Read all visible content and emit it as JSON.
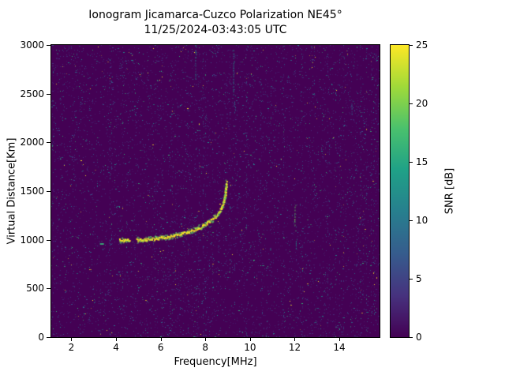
{
  "chart_data": {
    "type": "heatmap",
    "title": "Ionogram Jicamarca-Cuzco Polarization NE45°",
    "subtitle": "11/25/2024-03:43:05 UTC",
    "xlabel": "Frequency[MHz]",
    "ylabel": "Virtual Distance[Km]",
    "xlim": [
      1.1,
      15.8
    ],
    "ylim": [
      0,
      3000
    ],
    "x_ticks": [
      2,
      4,
      6,
      8,
      10,
      12,
      14
    ],
    "y_ticks": [
      0,
      500,
      1000,
      1500,
      2000,
      2500,
      3000
    ],
    "grid": false,
    "background_color": "#440154",
    "colorbar": {
      "label": "SNR [dB]",
      "min": 0,
      "max": 25,
      "ticks": [
        0,
        5,
        10,
        15,
        20,
        25
      ],
      "viridis_stops": [
        "#440154",
        "#46327e",
        "#365c8d",
        "#277f8e",
        "#1fa187",
        "#4ac16d",
        "#a0da39",
        "#fde725"
      ]
    },
    "noise": {
      "seed": 42,
      "speckle_count": 6800,
      "column_streaks": 48,
      "palette": [
        {
          "color": "#46327e",
          "weight": 0.42
        },
        {
          "color": "#3b528b",
          "weight": 0.25
        },
        {
          "color": "#2c728e",
          "weight": 0.16
        },
        {
          "color": "#21918c",
          "weight": 0.1
        },
        {
          "color": "#35b779",
          "weight": 0.05
        },
        {
          "color": "#fde725",
          "weight": 0.02
        }
      ],
      "vertical_features": [
        {
          "freq": 7.55,
          "km_from": 2650,
          "km_to": 3000,
          "color": "#21918c"
        },
        {
          "freq": 9.25,
          "km_from": 2480,
          "km_to": 2950,
          "color": "#21918c"
        },
        {
          "freq": 9.3,
          "km_from": 2300,
          "km_to": 2420,
          "color": "#2c728e"
        },
        {
          "freq": 12.0,
          "km_from": 1150,
          "km_to": 1360,
          "color": "#5ec962"
        },
        {
          "freq": 12.05,
          "km_from": 900,
          "km_to": 1010,
          "color": "#21918c"
        },
        {
          "freq": 14.55,
          "km_from": 2280,
          "km_to": 2430,
          "color": "#2c728e"
        }
      ]
    },
    "trace": {
      "description": "F-layer ionogram echo trace, SNR ~20-25 dB",
      "core_color": "#fde725",
      "halo_color": "#5ec962",
      "echo_dot": [
        3.35,
        965
      ],
      "segments": [
        [
          [
            4.15,
            1000
          ],
          [
            4.3,
            1000
          ],
          [
            4.45,
            1002
          ],
          [
            4.6,
            1003
          ]
        ],
        [
          [
            4.9,
            1005
          ],
          [
            5.2,
            1008
          ],
          [
            5.5,
            1012
          ],
          [
            5.8,
            1018
          ],
          [
            6.1,
            1028
          ],
          [
            6.4,
            1040
          ],
          [
            6.7,
            1055
          ],
          [
            7.0,
            1072
          ],
          [
            7.3,
            1092
          ],
          [
            7.6,
            1118
          ],
          [
            7.9,
            1150
          ],
          [
            8.1,
            1180
          ],
          [
            8.3,
            1215
          ],
          [
            8.5,
            1260
          ],
          [
            8.65,
            1305
          ],
          [
            8.75,
            1355
          ],
          [
            8.82,
            1410
          ],
          [
            8.87,
            1470
          ],
          [
            8.9,
            1540
          ],
          [
            8.92,
            1600
          ]
        ]
      ]
    }
  }
}
